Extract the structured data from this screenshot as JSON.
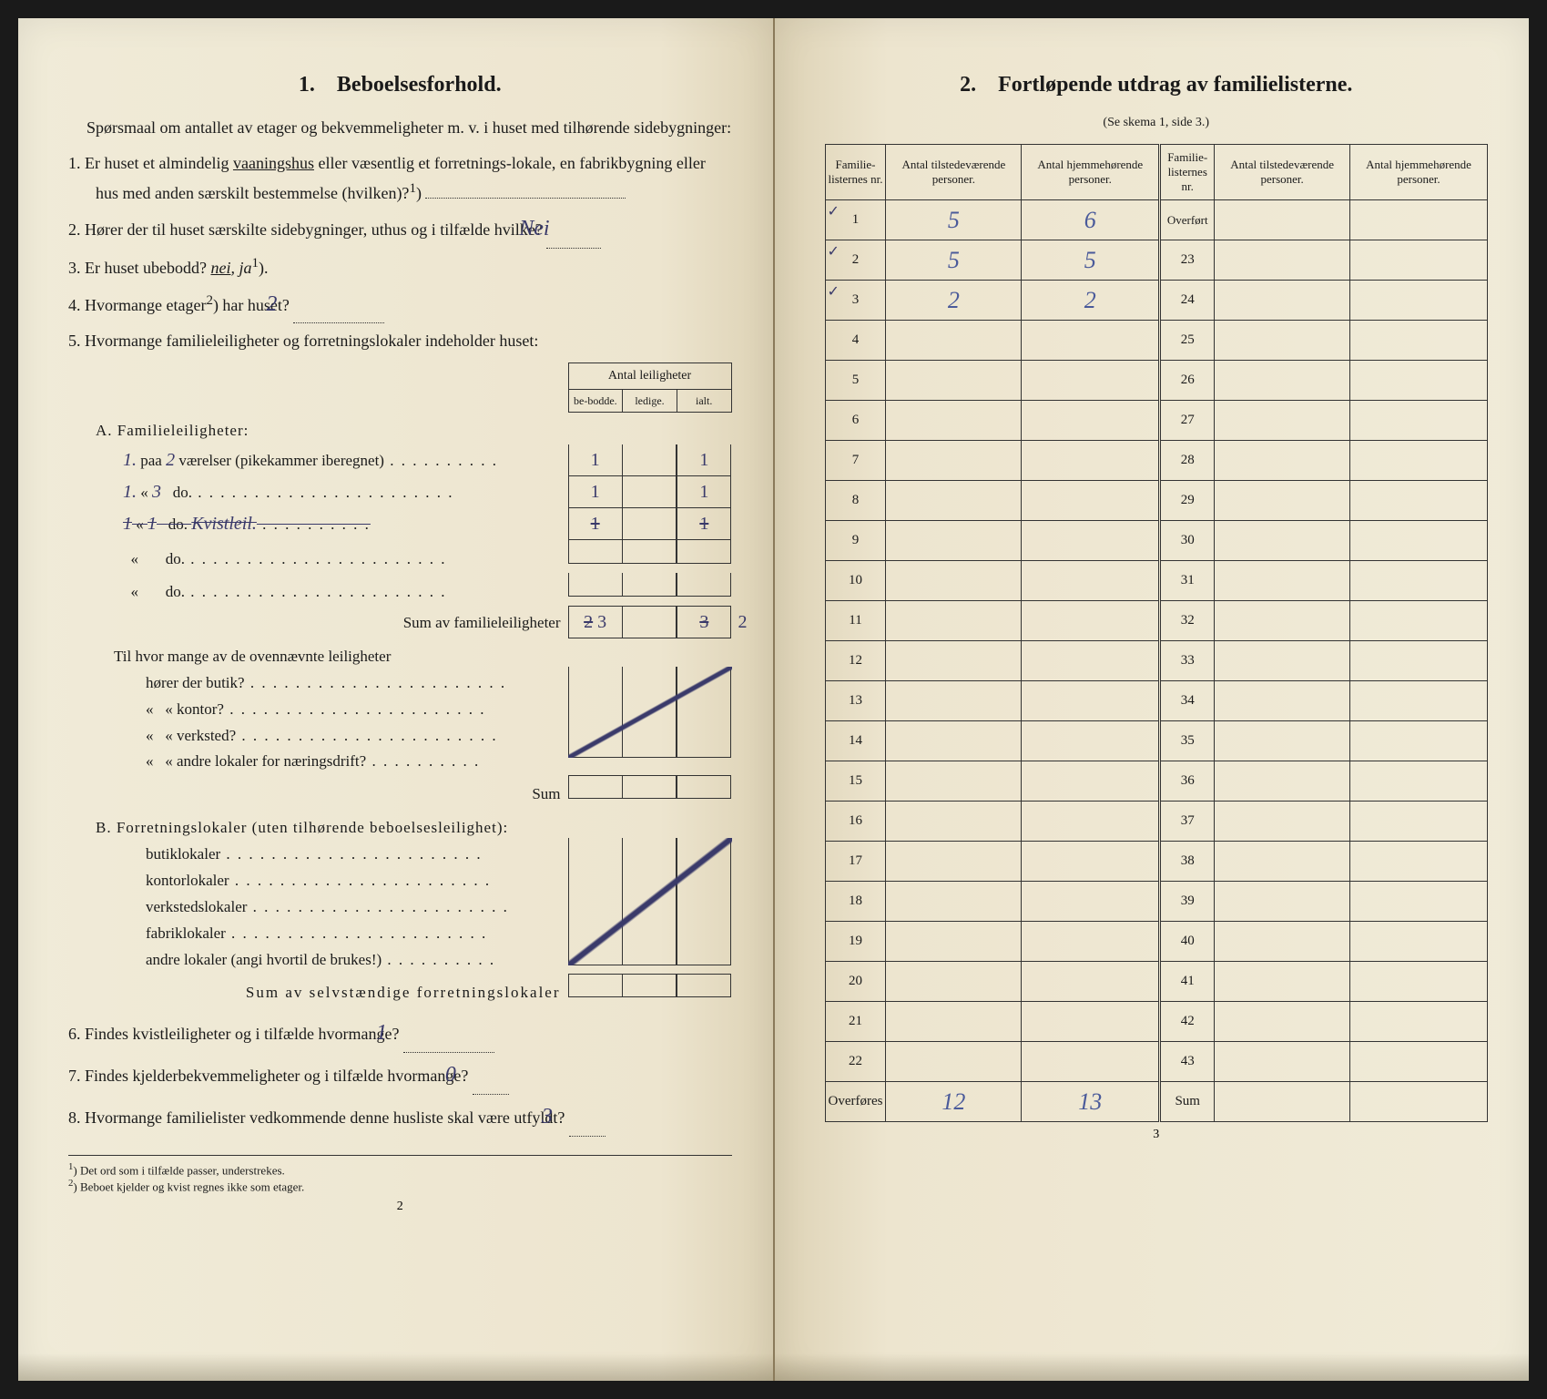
{
  "left": {
    "section_number": "1.",
    "section_title": "Beboelsesforhold.",
    "intro": "Spørsmaal om antallet av etager og bekvemmeligheter m. v. i huset med tilhørende sidebygninger:",
    "q1": {
      "num": "1.",
      "text_a": "Er huset et almindelig ",
      "underlined": "vaaningshus",
      "text_b": " eller væsentlig et forretnings-lokale, en fabrikbygning eller hus med anden særskilt bestemmelse (hvilken)?",
      "sup": "1",
      "answer": ""
    },
    "q2": {
      "num": "2.",
      "text": "Hører der til huset særskilte sidebygninger, uthus og i tilfælde hvilke?",
      "answer": "Nei"
    },
    "q3": {
      "num": "3.",
      "text_a": "Er huset ubebodd? ",
      "underlined": "nei",
      "text_b": ", ja",
      "sup": "1",
      "text_c": ")."
    },
    "q4": {
      "num": "4.",
      "text_a": "Hvormange etager",
      "sup": "2",
      "text_b": ") har huset?",
      "answer": "2"
    },
    "q5": {
      "num": "5.",
      "text": "Hvormange familieleiligheter og forretningslokaler indeholder huset:"
    },
    "table5": {
      "header_title": "Antal leiligheter",
      "header_cols": [
        "be-bodde.",
        "ledige.",
        "ialt."
      ],
      "sectionA": "A. Familieleiligheter:",
      "rowA1": {
        "prefix": "1.",
        "roomcount": "2",
        "label": "værelser (pikekammer iberegnet)",
        "c1": "1",
        "c2": "",
        "c3": "1"
      },
      "rowA2": {
        "prefix": "1.",
        "roomcount": "3",
        "label": "do.",
        "c1": "1",
        "c2": "",
        "c3": "1"
      },
      "rowA3": {
        "prefix": "1",
        "roomcount": "1",
        "label": "do.",
        "note": "Kvistleil.",
        "c1": "1",
        "c2": "",
        "c3": "1",
        "struck": true
      },
      "rowA4": {
        "prefix": "",
        "label": "do.",
        "c1": "",
        "c2": "",
        "c3": ""
      },
      "rowA5": {
        "prefix": "",
        "label": "do.",
        "c1": "",
        "c2": "",
        "c3": ""
      },
      "sumA": {
        "label": "Sum av familieleiligheter",
        "c1": "3",
        "c1_struck": "2",
        "c2": "",
        "c3": "3",
        "c3_after": "2"
      },
      "sub_q": "Til hvor mange av de ovennævnte leiligheter",
      "sub1": "hører der butik?",
      "sub2": "kontor?",
      "sub3": "verksted?",
      "sub4": "andre lokaler for næringsdrift?",
      "sum_sub": "Sum",
      "sectionB": "B. Forretningslokaler (uten tilhørende beboelsesleilighet):",
      "rowB1": "butiklokaler",
      "rowB2": "kontorlokaler",
      "rowB3": "verkstedslokaler",
      "rowB4": "fabriklokaler",
      "rowB5": "andre lokaler (angi hvortil de brukes!)",
      "sumB": "Sum av selvstændige forretningslokaler"
    },
    "q6": {
      "num": "6.",
      "text": "Findes kvistleiligheter og i tilfælde hvormange?",
      "answer": "1"
    },
    "q7": {
      "num": "7.",
      "text": "Findes kjelderbekvemmeligheter og i tilfælde hvormange?",
      "answer": "0"
    },
    "q8": {
      "num": "8.",
      "text": "Hvormange familielister vedkommende denne husliste skal være utfyldt?",
      "answer": "3"
    },
    "footnote1": "Det ord som i tilfælde passer, understrekes.",
    "footnote2": "Beboet kjelder og kvist regnes ikke som etager.",
    "pagenum": "2"
  },
  "right": {
    "section_number": "2.",
    "section_title": "Fortløpende utdrag av familielisterne.",
    "subtitle": "(Se skema 1, side 3.)",
    "headers": {
      "h1": "Familie-listernes nr.",
      "h2": "Antal tilstedeværende personer.",
      "h3": "Antal hjemmehørende personer.",
      "h4": "Familie-listernes nr.",
      "h5": "Antal tilstedeværende personer.",
      "h6": "Antal hjemmehørende personer."
    },
    "overfort": "Overført",
    "rows": [
      {
        "n1": "1",
        "v1": "5",
        "v2": "6",
        "n2": "",
        "checked": true
      },
      {
        "n1": "2",
        "v1": "5",
        "v2": "5",
        "n2": "23",
        "checked": true
      },
      {
        "n1": "3",
        "v1": "2",
        "v2": "2",
        "n2": "24",
        "checked": true
      },
      {
        "n1": "4",
        "v1": "",
        "v2": "",
        "n2": "25"
      },
      {
        "n1": "5",
        "v1": "",
        "v2": "",
        "n2": "26"
      },
      {
        "n1": "6",
        "v1": "",
        "v2": "",
        "n2": "27"
      },
      {
        "n1": "7",
        "v1": "",
        "v2": "",
        "n2": "28"
      },
      {
        "n1": "8",
        "v1": "",
        "v2": "",
        "n2": "29"
      },
      {
        "n1": "9",
        "v1": "",
        "v2": "",
        "n2": "30"
      },
      {
        "n1": "10",
        "v1": "",
        "v2": "",
        "n2": "31"
      },
      {
        "n1": "11",
        "v1": "",
        "v2": "",
        "n2": "32"
      },
      {
        "n1": "12",
        "v1": "",
        "v2": "",
        "n2": "33"
      },
      {
        "n1": "13",
        "v1": "",
        "v2": "",
        "n2": "34"
      },
      {
        "n1": "14",
        "v1": "",
        "v2": "",
        "n2": "35"
      },
      {
        "n1": "15",
        "v1": "",
        "v2": "",
        "n2": "36"
      },
      {
        "n1": "16",
        "v1": "",
        "v2": "",
        "n2": "37"
      },
      {
        "n1": "17",
        "v1": "",
        "v2": "",
        "n2": "38"
      },
      {
        "n1": "18",
        "v1": "",
        "v2": "",
        "n2": "39"
      },
      {
        "n1": "19",
        "v1": "",
        "v2": "",
        "n2": "40"
      },
      {
        "n1": "20",
        "v1": "",
        "v2": "",
        "n2": "41"
      },
      {
        "n1": "21",
        "v1": "",
        "v2": "",
        "n2": "42"
      },
      {
        "n1": "22",
        "v1": "",
        "v2": "",
        "n2": "43"
      }
    ],
    "footer": {
      "label_left": "Overføres",
      "v1": "12",
      "v2": "13",
      "label_right": "Sum"
    },
    "pagenum": "3"
  },
  "colors": {
    "ink": "#1a1a1a",
    "handwriting": "#3a3a6a",
    "paper": "#ede5cf",
    "border": "#333333"
  }
}
